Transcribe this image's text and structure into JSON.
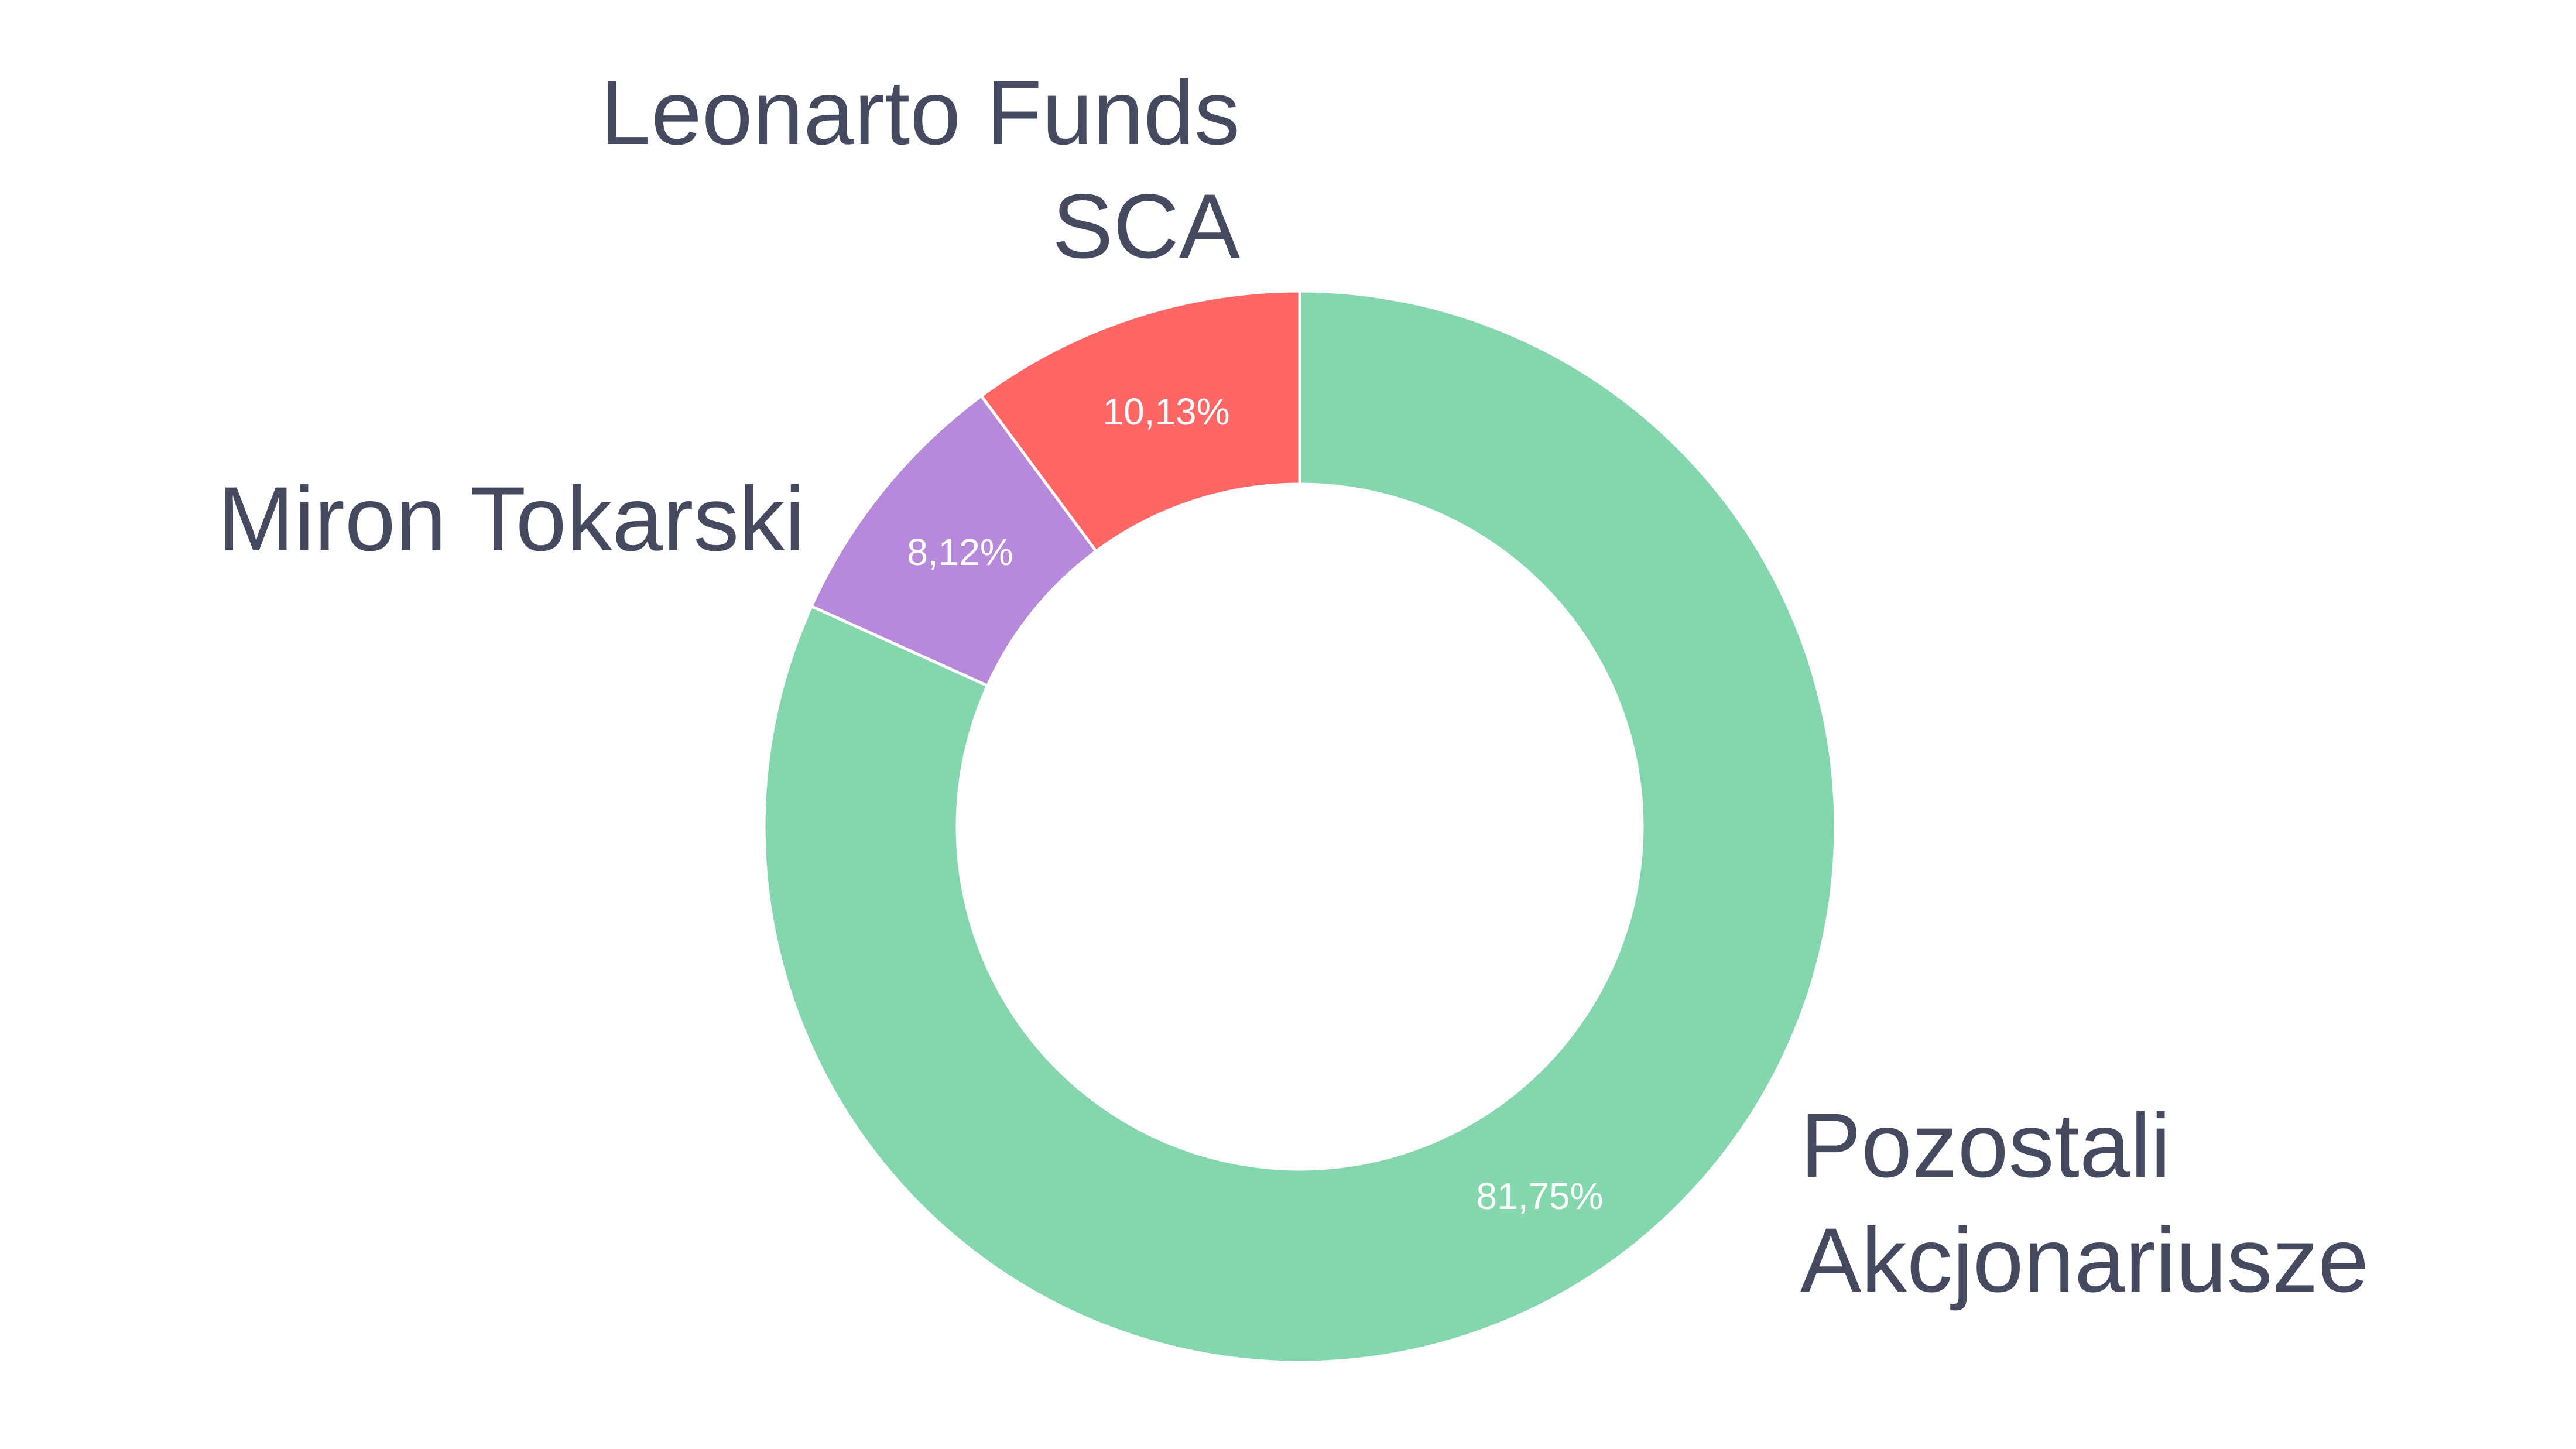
{
  "chart_data": {
    "type": "pie",
    "donut": true,
    "categories": [
      "Pozostali Akcjonariusze",
      "Miron Tokarski",
      "Leonarto Funds SCA"
    ],
    "series": [
      {
        "values": [
          81.75,
          8.12,
          10.13
        ],
        "value_labels": [
          "81,75%",
          "8,12%",
          "10,13%"
        ],
        "colors": [
          "#84d6ac",
          "#b689da",
          "#ff6666"
        ]
      }
    ],
    "legend": "none",
    "labels": {
      "pozostali": [
        "Pozostali",
        "Akcjonariusze"
      ],
      "miron": [
        "Miron Tokarski"
      ],
      "leonarto": [
        "Leonarto Funds",
        "SCA"
      ]
    }
  }
}
